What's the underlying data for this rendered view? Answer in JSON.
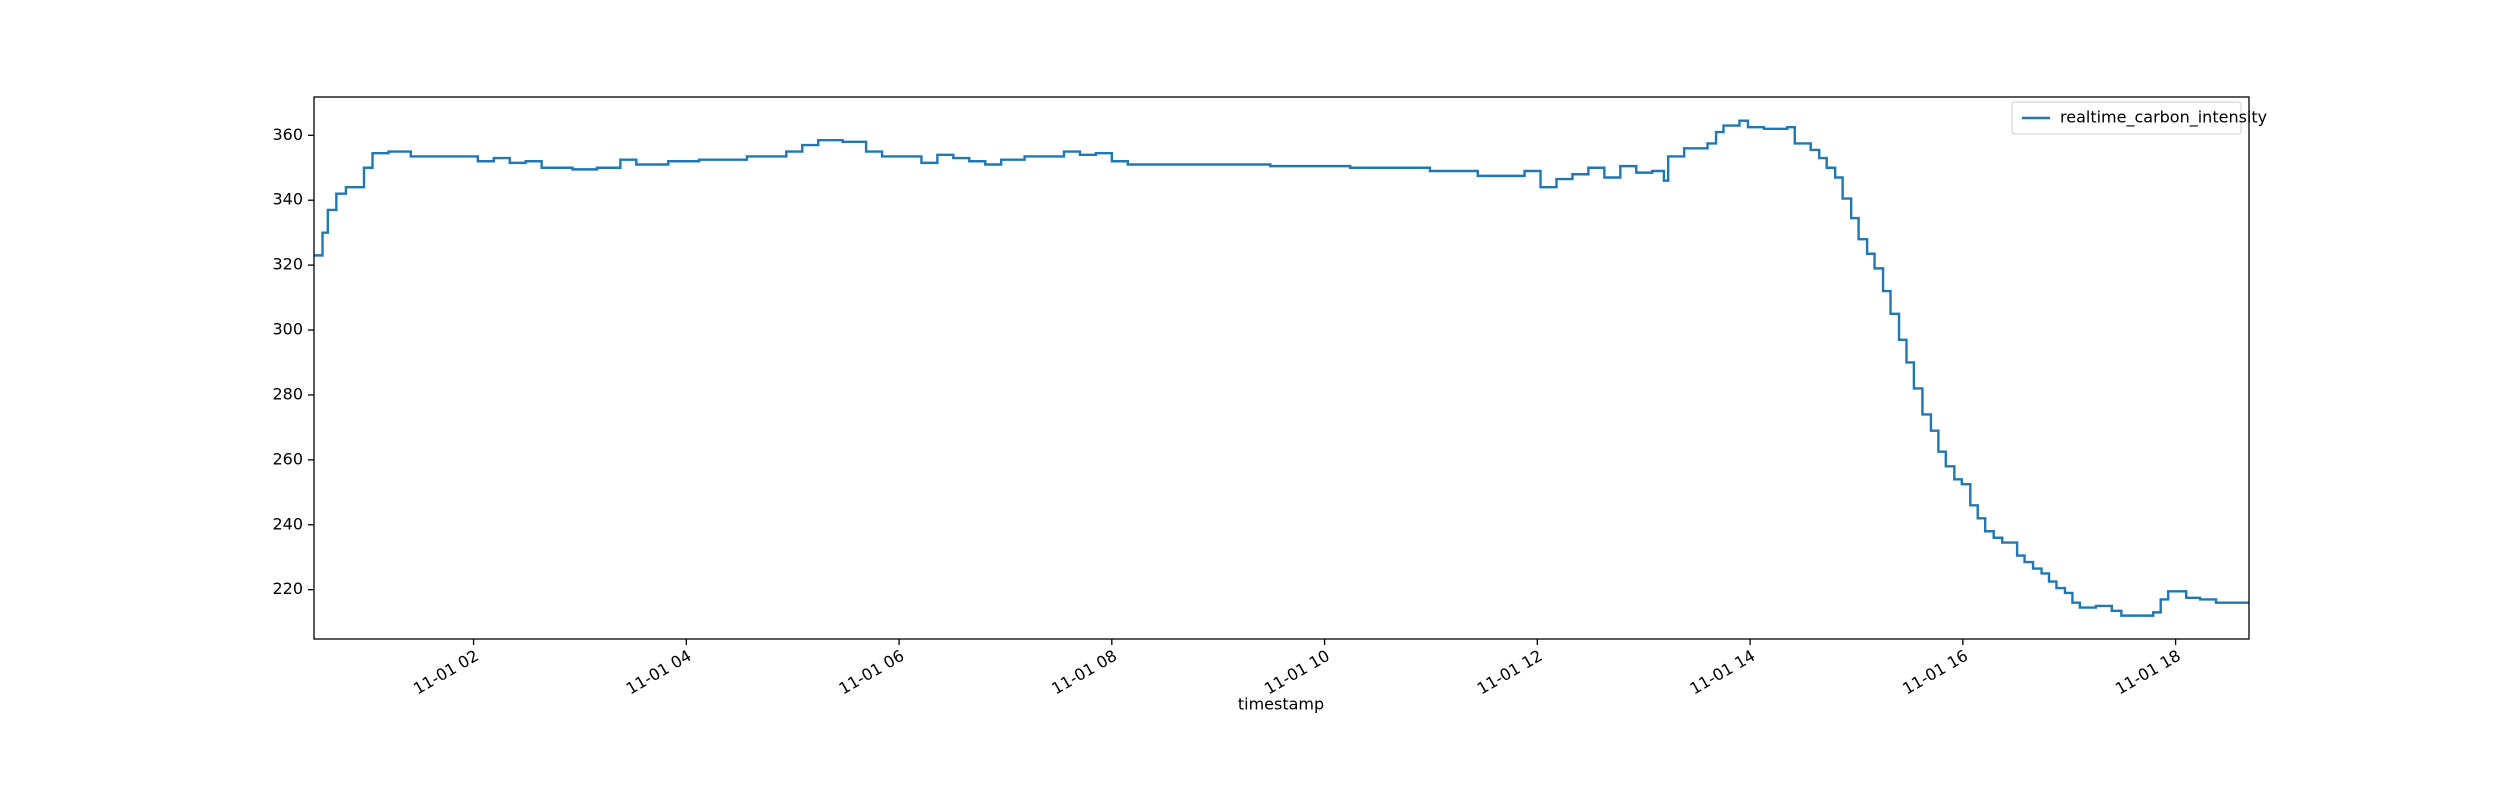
{
  "chart_data": {
    "type": "step",
    "xlabel": "timestamp",
    "x": [
      0.5,
      0.58,
      0.63,
      0.71,
      0.8,
      0.97,
      1.05,
      1.2,
      1.41,
      2.04,
      2.19,
      2.34,
      2.49,
      2.64,
      2.93,
      3.16,
      3.38,
      3.53,
      3.83,
      4.12,
      4.57,
      4.94,
      5.09,
      5.24,
      5.47,
      5.69,
      5.84,
      6.21,
      6.36,
      6.51,
      6.66,
      6.81,
      6.96,
      7.18,
      7.55,
      7.7,
      7.85,
      8.0,
      8.15,
      9.49,
      10.24,
      10.99,
      11.44,
      11.88,
      12.03,
      12.18,
      12.33,
      12.48,
      12.63,
      12.78,
      12.93,
      13.08,
      13.19,
      13.23,
      13.38,
      13.6,
      13.68,
      13.75,
      13.9,
      13.98,
      14.13,
      14.35,
      14.42,
      14.57,
      14.65,
      14.72,
      14.8,
      14.87,
      14.95,
      15.02,
      15.1,
      15.17,
      15.25,
      15.32,
      15.4,
      15.47,
      15.54,
      15.62,
      15.7,
      15.77,
      15.84,
      15.92,
      15.99,
      16.07,
      16.14,
      16.21,
      16.29,
      16.37,
      16.51,
      16.58,
      16.66,
      16.74,
      16.81,
      16.88,
      16.96,
      17.03,
      17.1,
      17.25,
      17.4,
      17.49,
      17.79,
      17.86,
      17.93,
      18.1,
      18.23,
      18.38,
      18.69
    ],
    "series": [
      {
        "name": "realtime_carbon_intensity",
        "color": "#1f77b4",
        "values": [
          323,
          330,
          337,
          342,
          344,
          350,
          354.5,
          355,
          353.5,
          352,
          353,
          351.5,
          352,
          350,
          349.5,
          350,
          352.5,
          351,
          352,
          352.5,
          353.5,
          355,
          357,
          358.5,
          358,
          355,
          353.5,
          351.5,
          354,
          353,
          352,
          351,
          352.5,
          353.5,
          355,
          354,
          354.5,
          352,
          351,
          350.5,
          350,
          349,
          347.5,
          349,
          344,
          346.5,
          348,
          350,
          347,
          350.5,
          348.5,
          349,
          346,
          353.5,
          356,
          357.5,
          361,
          363,
          364.5,
          362.5,
          362,
          362.5,
          357.5,
          355.5,
          353,
          350,
          347,
          340.5,
          334.5,
          328,
          323.5,
          319,
          312,
          305,
          297,
          290,
          282,
          274,
          269,
          262.5,
          258,
          254,
          252.5,
          246,
          242,
          238,
          236,
          234.5,
          230.5,
          228.5,
          226.5,
          225,
          222.5,
          220.5,
          219,
          216,
          214.5,
          215,
          213.5,
          212,
          213,
          217,
          219.5,
          217.5,
          217,
          216,
          216
        ]
      }
    ],
    "xlim": [
      0.5,
      18.69
    ],
    "xticks": [
      {
        "value": 2,
        "label": "11-01 02"
      },
      {
        "value": 4,
        "label": "11-01 04"
      },
      {
        "value": 6,
        "label": "11-01 06"
      },
      {
        "value": 8,
        "label": "11-01 08"
      },
      {
        "value": 10,
        "label": "11-01 10"
      },
      {
        "value": 12,
        "label": "11-01 12"
      },
      {
        "value": 14,
        "label": "11-01 14"
      },
      {
        "value": 16,
        "label": "11-01 16"
      },
      {
        "value": 18,
        "label": "11-01 18"
      }
    ],
    "ylim": [
      204.8,
      371.8
    ],
    "yticks": [
      220,
      240,
      260,
      280,
      300,
      320,
      340,
      360
    ],
    "grid": false,
    "legend": "upper-right"
  }
}
